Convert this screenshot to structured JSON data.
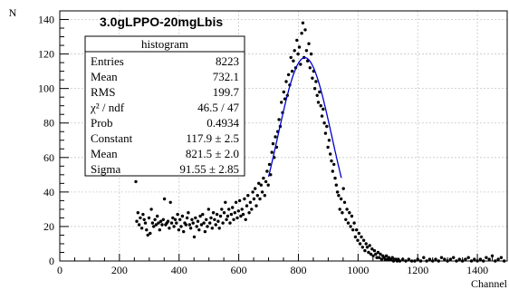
{
  "chart_data": {
    "type": "scatter",
    "title": "3.0gLPPO-20mgLbis",
    "xlabel": "Channel",
    "ylabel": "N",
    "xlim": [
      0,
      1500
    ],
    "ylim": [
      0,
      145
    ],
    "xticks": [
      0,
      200,
      400,
      600,
      800,
      1000,
      1200,
      1400
    ],
    "yticks": [
      0,
      20,
      40,
      60,
      80,
      100,
      120,
      140
    ],
    "grid": true,
    "stats_box": {
      "title": "histogram",
      "rows": [
        {
          "label": "Entries",
          "value": "8223"
        },
        {
          "label": "Mean",
          "value": "732.1"
        },
        {
          "label": "RMS",
          "value": "199.7"
        },
        {
          "label": "χ² / ndf",
          "value": "46.5 / 47"
        },
        {
          "label": "Prob",
          "value": "0.4934"
        },
        {
          "label": "Constant",
          "value": "117.9 ± 2.5"
        },
        {
          "label": "Mean",
          "value": "821.5 ± 2.0"
        },
        {
          "label": "Sigma",
          "value": "91.55 ± 2.85"
        }
      ]
    },
    "fit": {
      "type": "gaussian",
      "constant": 117.9,
      "mean": 821.5,
      "sigma": 91.55,
      "x_range": [
        700,
        945
      ],
      "color": "#0000cc"
    },
    "marker_color": "#000000",
    "points": [
      [
        255,
        46
      ],
      [
        258,
        23
      ],
      [
        262,
        28
      ],
      [
        266,
        21
      ],
      [
        270,
        25
      ],
      [
        275,
        19
      ],
      [
        279,
        27
      ],
      [
        283,
        24
      ],
      [
        287,
        22
      ],
      [
        291,
        18
      ],
      [
        295,
        15
      ],
      [
        299,
        25
      ],
      [
        303,
        16
      ],
      [
        307,
        30
      ],
      [
        311,
        22
      ],
      [
        315,
        20
      ],
      [
        319,
        24
      ],
      [
        323,
        21
      ],
      [
        327,
        26
      ],
      [
        331,
        22
      ],
      [
        335,
        18
      ],
      [
        339,
        23
      ],
      [
        343,
        21
      ],
      [
        347,
        24
      ],
      [
        351,
        36
      ],
      [
        355,
        21
      ],
      [
        359,
        22
      ],
      [
        363,
        23
      ],
      [
        367,
        19
      ],
      [
        371,
        34
      ],
      [
        375,
        22
      ],
      [
        379,
        25
      ],
      [
        383,
        20
      ],
      [
        387,
        24
      ],
      [
        391,
        22
      ],
      [
        395,
        27
      ],
      [
        399,
        18
      ],
      [
        403,
        24
      ],
      [
        407,
        20
      ],
      [
        411,
        26
      ],
      [
        415,
        17
      ],
      [
        419,
        22
      ],
      [
        423,
        21
      ],
      [
        427,
        25
      ],
      [
        431,
        28
      ],
      [
        435,
        21
      ],
      [
        439,
        19
      ],
      [
        443,
        24
      ],
      [
        447,
        22
      ],
      [
        451,
        14
      ],
      [
        455,
        25
      ],
      [
        459,
        20
      ],
      [
        463,
        23
      ],
      [
        467,
        18
      ],
      [
        471,
        26
      ],
      [
        475,
        21
      ],
      [
        479,
        27
      ],
      [
        483,
        22
      ],
      [
        487,
        17
      ],
      [
        491,
        24
      ],
      [
        495,
        20
      ],
      [
        499,
        30
      ],
      [
        503,
        22
      ],
      [
        507,
        25
      ],
      [
        511,
        19
      ],
      [
        515,
        28
      ],
      [
        519,
        24
      ],
      [
        523,
        21
      ],
      [
        527,
        27
      ],
      [
        531,
        23
      ],
      [
        535,
        19
      ],
      [
        539,
        26
      ],
      [
        543,
        30
      ],
      [
        547,
        22
      ],
      [
        551,
        28
      ],
      [
        555,
        34
      ],
      [
        559,
        24
      ],
      [
        563,
        26
      ],
      [
        567,
        30
      ],
      [
        571,
        22
      ],
      [
        575,
        27
      ],
      [
        579,
        31
      ],
      [
        583,
        24
      ],
      [
        587,
        28
      ],
      [
        591,
        34
      ],
      [
        595,
        25
      ],
      [
        599,
        29
      ],
      [
        603,
        35
      ],
      [
        607,
        26
      ],
      [
        611,
        30
      ],
      [
        615,
        27
      ],
      [
        619,
        36
      ],
      [
        623,
        24
      ],
      [
        627,
        32
      ],
      [
        631,
        38
      ],
      [
        635,
        28
      ],
      [
        639,
        34
      ],
      [
        643,
        30
      ],
      [
        647,
        40
      ],
      [
        651,
        36
      ],
      [
        655,
        42
      ],
      [
        659,
        32
      ],
      [
        663,
        38
      ],
      [
        667,
        45
      ],
      [
        671,
        36
      ],
      [
        675,
        44
      ],
      [
        679,
        40
      ],
      [
        683,
        48
      ],
      [
        687,
        38
      ],
      [
        691,
        46
      ],
      [
        695,
        52
      ],
      [
        699,
        44
      ],
      [
        703,
        56
      ],
      [
        707,
        50
      ],
      [
        711,
        63
      ],
      [
        715,
        68
      ],
      [
        719,
        60
      ],
      [
        723,
        72
      ],
      [
        727,
        66
      ],
      [
        731,
        75
      ],
      [
        735,
        82
      ],
      [
        739,
        78
      ],
      [
        743,
        92
      ],
      [
        747,
        86
      ],
      [
        751,
        98
      ],
      [
        755,
        94
      ],
      [
        759,
        104
      ],
      [
        763,
        96
      ],
      [
        767,
        108
      ],
      [
        771,
        102
      ],
      [
        775,
        118
      ],
      [
        779,
        110
      ],
      [
        783,
        116
      ],
      [
        787,
        122
      ],
      [
        791,
        112
      ],
      [
        795,
        128
      ],
      [
        799,
        120
      ],
      [
        803,
        124
      ],
      [
        807,
        114
      ],
      [
        811,
        132
      ],
      [
        815,
        138
      ],
      [
        819,
        118
      ],
      [
        823,
        134
      ],
      [
        827,
        122
      ],
      [
        831,
        116
      ],
      [
        835,
        126
      ],
      [
        839,
        112
      ],
      [
        843,
        120
      ],
      [
        847,
        106
      ],
      [
        851,
        110
      ],
      [
        855,
        100
      ],
      [
        859,
        104
      ],
      [
        863,
        96
      ],
      [
        867,
        92
      ],
      [
        871,
        98
      ],
      [
        875,
        90
      ],
      [
        879,
        84
      ],
      [
        883,
        88
      ],
      [
        887,
        80
      ],
      [
        891,
        74
      ],
      [
        895,
        78
      ],
      [
        899,
        66
      ],
      [
        903,
        70
      ],
      [
        907,
        62
      ],
      [
        911,
        58
      ],
      [
        915,
        52
      ],
      [
        919,
        56
      ],
      [
        923,
        48
      ],
      [
        927,
        44
      ],
      [
        931,
        40
      ],
      [
        935,
        38
      ],
      [
        939,
        30
      ],
      [
        943,
        36
      ],
      [
        947,
        28
      ],
      [
        951,
        42
      ],
      [
        955,
        34
      ],
      [
        959,
        24
      ],
      [
        963,
        30
      ],
      [
        967,
        22
      ],
      [
        971,
        28
      ],
      [
        975,
        20
      ],
      [
        979,
        26
      ],
      [
        983,
        18
      ],
      [
        987,
        22
      ],
      [
        991,
        14
      ],
      [
        995,
        18
      ],
      [
        999,
        12
      ],
      [
        1003,
        16
      ],
      [
        1007,
        10
      ],
      [
        1011,
        14
      ],
      [
        1015,
        8
      ],
      [
        1019,
        12
      ],
      [
        1023,
        6
      ],
      [
        1027,
        10
      ],
      [
        1031,
        8
      ],
      [
        1035,
        5
      ],
      [
        1039,
        9
      ],
      [
        1043,
        4
      ],
      [
        1047,
        7
      ],
      [
        1051,
        3
      ],
      [
        1055,
        6
      ],
      [
        1059,
        4
      ],
      [
        1063,
        2
      ],
      [
        1067,
        5
      ],
      [
        1071,
        2
      ],
      [
        1075,
        4
      ],
      [
        1079,
        1
      ],
      [
        1083,
        3
      ],
      [
        1087,
        2
      ],
      [
        1091,
        1
      ],
      [
        1095,
        3
      ],
      [
        1099,
        1
      ],
      [
        1103,
        2
      ],
      [
        1107,
        1
      ],
      [
        1111,
        1
      ],
      [
        1115,
        2
      ],
      [
        1119,
        0
      ],
      [
        1123,
        1
      ],
      [
        1127,
        1
      ],
      [
        1131,
        0
      ],
      [
        1135,
        1
      ],
      [
        1140,
        0
      ],
      [
        1150,
        1
      ],
      [
        1160,
        0
      ],
      [
        1170,
        1
      ],
      [
        1180,
        0
      ],
      [
        1190,
        0
      ],
      [
        1200,
        1
      ],
      [
        1210,
        0
      ],
      [
        1220,
        2
      ],
      [
        1230,
        0
      ],
      [
        1240,
        1
      ],
      [
        1250,
        0
      ],
      [
        1260,
        1
      ],
      [
        1270,
        0
      ],
      [
        1280,
        2
      ],
      [
        1290,
        1
      ],
      [
        1300,
        0
      ],
      [
        1310,
        1
      ],
      [
        1320,
        2
      ],
      [
        1330,
        0
      ],
      [
        1340,
        1
      ],
      [
        1350,
        0
      ],
      [
        1360,
        1
      ],
      [
        1370,
        2
      ],
      [
        1380,
        0
      ],
      [
        1390,
        1
      ],
      [
        1400,
        0
      ],
      [
        1410,
        1
      ],
      [
        1420,
        0
      ],
      [
        1430,
        2
      ],
      [
        1440,
        1
      ],
      [
        1450,
        3
      ],
      [
        1460,
        0
      ],
      [
        1470,
        1
      ],
      [
        1480,
        2
      ],
      [
        1490,
        0
      ]
    ]
  }
}
